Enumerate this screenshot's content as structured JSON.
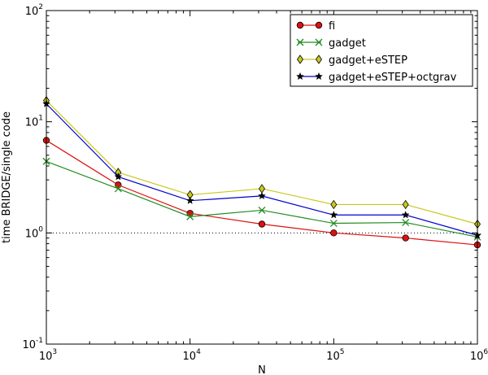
{
  "chart_data": {
    "type": "line",
    "title": "",
    "xlabel": "N",
    "ylabel": "time BRIDGE/single code",
    "xscale": "log",
    "yscale": "log",
    "xlim": [
      1000,
      1000000
    ],
    "ylim": [
      0.1,
      100
    ],
    "x": [
      1000,
      3162,
      10000,
      31623,
      100000,
      316228,
      1000000
    ],
    "xticks": [
      {
        "value": 1000,
        "base": "10",
        "exp": "3"
      },
      {
        "value": 10000,
        "base": "10",
        "exp": "4"
      },
      {
        "value": 100000,
        "base": "10",
        "exp": "5"
      },
      {
        "value": 1000000,
        "base": "10",
        "exp": "6"
      }
    ],
    "yticks": [
      {
        "value": 0.1,
        "base": "10",
        "exp": "-1"
      },
      {
        "value": 1,
        "base": "10",
        "exp": "0"
      },
      {
        "value": 10,
        "base": "10",
        "exp": "1"
      },
      {
        "value": 100,
        "base": "10",
        "exp": "2"
      }
    ],
    "reference_line": {
      "y": 1,
      "style": "dotted"
    },
    "legend_position": "top-right",
    "series": [
      {
        "name": "fi",
        "color": "#dd1111",
        "marker": "circle",
        "values": [
          6.8,
          2.7,
          1.5,
          1.2,
          1.0,
          0.9,
          0.78
        ]
      },
      {
        "name": "gadget",
        "color": "#228b22",
        "marker": "x",
        "values": [
          4.4,
          2.5,
          1.4,
          1.6,
          1.22,
          1.24,
          0.92
        ]
      },
      {
        "name": "gadget+eSTEP",
        "color": "#c8c820",
        "marker": "diamond",
        "values": [
          15.5,
          3.5,
          2.2,
          2.5,
          1.8,
          1.8,
          1.2
        ]
      },
      {
        "name": "gadget+eSTEP+octgrav",
        "color": "#0000cc",
        "marker": "star",
        "values": [
          14.5,
          3.2,
          1.95,
          2.15,
          1.45,
          1.45,
          0.95
        ]
      }
    ]
  }
}
